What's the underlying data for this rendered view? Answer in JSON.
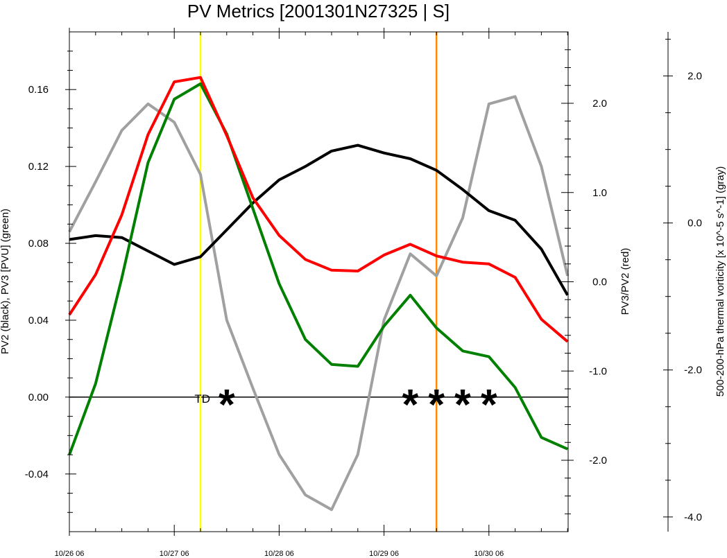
{
  "chart_data": {
    "type": "line",
    "title": "PV Metrics [2001301N27325 | S]",
    "x": [
      "10/26 06",
      "10/26 12",
      "10/26 18",
      "10/27 00",
      "10/27 06",
      "10/27 12",
      "10/27 18",
      "10/28 00",
      "10/28 06",
      "10/28 12",
      "10/28 18",
      "10/29 00",
      "10/29 06",
      "10/29 12",
      "10/29 18",
      "10/30 00",
      "10/30 06",
      "10/30 12",
      "10/30 18",
      "10/31 00"
    ],
    "x_tick_labels": [
      "10/26 06",
      "10/27 06",
      "10/28 06",
      "10/29 06",
      "10/30 06"
    ],
    "axes": {
      "left": {
        "label": "PV2 (black), PV3 [PVU] (green)",
        "range": [
          -0.07,
          0.19
        ],
        "ticks": [
          "-0.04",
          "0.00",
          "0.04",
          "0.08",
          "0.12",
          "0.16"
        ]
      },
      "right": {
        "label": "PV3/PV2 (red)",
        "range": [
          -2.8,
          2.8
        ],
        "ticks": [
          "-2.0",
          "-1.0",
          "0.0",
          "1.0",
          "2.0"
        ]
      },
      "outer": {
        "label": "500-200-hPa thermal vorticity [x 10^-5 s^-1] (gray)",
        "range": [
          -4.2,
          2.6
        ],
        "ticks": [
          "-4.0",
          "-2.0",
          "0.0",
          "2.0"
        ]
      }
    },
    "series": [
      {
        "axis": "left",
        "color": "#000000",
        "values": [
          0.082,
          0.084,
          0.083,
          0.076,
          0.069,
          0.073,
          0.087,
          0.101,
          0.113,
          0.12,
          0.128,
          0.131,
          0.127,
          0.124,
          0.118,
          0.108,
          0.097,
          0.092,
          0.077,
          0.053
        ]
      },
      {
        "axis": "left",
        "color": "#008000",
        "values": [
          -0.03,
          0.007,
          0.062,
          0.122,
          0.155,
          0.163,
          0.137,
          0.098,
          0.059,
          0.03,
          0.017,
          0.016,
          0.037,
          0.053,
          0.036,
          0.024,
          0.021,
          0.005,
          -0.021,
          -0.027
        ]
      },
      {
        "axis": "right",
        "color": "#ff0000",
        "values": [
          -0.37,
          0.08,
          0.75,
          1.65,
          2.24,
          2.29,
          1.64,
          0.94,
          0.52,
          0.25,
          0.13,
          0.12,
          0.3,
          0.42,
          0.29,
          0.22,
          0.2,
          0.05,
          -0.42,
          -0.67
        ]
      },
      {
        "axis": "outer",
        "color": "#a0a0a0",
        "values": [
          -0.12,
          0.56,
          1.26,
          1.62,
          1.37,
          0.66,
          -1.32,
          -2.25,
          -3.15,
          -3.7,
          -3.9,
          -3.15,
          -1.32,
          -0.42,
          -0.72,
          0.07,
          1.62,
          1.72,
          0.77,
          -0.72
        ]
      }
    ],
    "vertical_lines": [
      {
        "x": "10/27 12",
        "color": "#ffff00"
      },
      {
        "x": "10/29 18",
        "color": "#ff8c00"
      }
    ],
    "zero_line": {
      "axis": "left",
      "value": 0.0,
      "color": "#000000"
    },
    "annotations": [
      {
        "text": "TD",
        "x": "10/27 12",
        "y": 0.0
      }
    ],
    "markers": [
      {
        "symbol": "*",
        "x": "10/27 18",
        "y": 0.0
      },
      {
        "symbol": "*",
        "x": "10/29 12",
        "y": 0.0
      },
      {
        "symbol": "*",
        "x": "10/29 18",
        "y": 0.0
      },
      {
        "symbol": "*",
        "x": "10/30 00",
        "y": 0.0
      },
      {
        "symbol": "*",
        "x": "10/30 06",
        "y": 0.0
      }
    ],
    "grid": false,
    "legend": "none"
  }
}
